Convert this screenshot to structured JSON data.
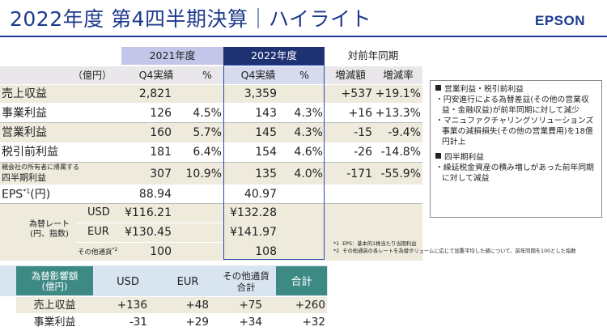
{
  "title": "2022年度 第4四半期決算｜ハイライト",
  "brand": "EPSON",
  "main_table": {
    "unit": "（億円）",
    "period_headers": {
      "prev": "2021年度",
      "curr": "2022年度",
      "yoy": "対前年同期"
    },
    "col_headers": [
      "Q4実績",
      "%",
      "Q4実績",
      "%",
      "増減額",
      "増減率"
    ],
    "rows": [
      {
        "label": "売上収益",
        "v1": "2,821",
        "p1": "",
        "v2": "3,359",
        "p2": "",
        "d": "+537",
        "dr": "+19.1%"
      },
      {
        "label": "事業利益",
        "v1": "126",
        "p1": "4.5%",
        "v2": "143",
        "p2": "4.3%",
        "d": "+16",
        "dr": "+13.3%"
      },
      {
        "label": "営業利益",
        "v1": "160",
        "p1": "5.7%",
        "v2": "145",
        "p2": "4.3%",
        "d": "-15",
        "dr": "-9.4%"
      },
      {
        "label": "税引前利益",
        "v1": "181",
        "p1": "6.4%",
        "v2": "154",
        "p2": "4.6%",
        "d": "-26",
        "dr": "-14.8%"
      },
      {
        "label_small": "親会社の所有者に帰属する",
        "label": "四半期利益",
        "v1": "307",
        "p1": "10.9%",
        "v2": "135",
        "p2": "4.0%",
        "d": "-171",
        "dr": "-55.9%"
      }
    ],
    "eps": {
      "label": "EPS",
      "sup": "*1",
      "unit": "(円)",
      "v1": "88.94",
      "v2": "40.97"
    },
    "fx": {
      "label": "為替レート\n(円、指数)",
      "rows": [
        {
          "ccy": "USD",
          "v1": "¥116.21",
          "v2": "¥132.28"
        },
        {
          "ccy": "EUR",
          "v1": "¥130.45",
          "v2": "¥141.97"
        },
        {
          "ccy": "その他通貨",
          "sup": "*2",
          "v1": "100",
          "v2": "108"
        }
      ]
    }
  },
  "highlights": {
    "sections": [
      {
        "heading": "営業利益・税引前利益",
        "items": [
          "円安進行による為替差益(その他の営業収益・金融収益)が前年同期に対して減少",
          "マニュファクチャリングソリューションズ事業の減損損失(その他の営業費用)を18億円計上"
        ]
      },
      {
        "heading": "四半期利益",
        "items": [
          "繰延税金資産の積み増しがあった前年同期に対して減益"
        ]
      }
    ]
  },
  "notes": [
    {
      "mark": "*1",
      "text": "EPS：基本的1株当たり当期利益"
    },
    {
      "mark": "*2",
      "text": "その他通貨の各レートを為替ボリュームに応じて加重平均した値について、前年同期を100とした指数"
    }
  ],
  "fx_impact": {
    "header": "為替影響額\n(億円)",
    "cols": [
      "USD",
      "EUR",
      "その他通貨\n合計",
      "合計"
    ],
    "rows": [
      {
        "label": "売上収益",
        "values": [
          "+136",
          "+48",
          "+75",
          "+260"
        ]
      },
      {
        "label": "事業利益",
        "values": [
          "-31",
          "+29",
          "+34",
          "+32"
        ]
      }
    ]
  },
  "colors": {
    "navy": "#1e3173",
    "lavender": "#c3c6e8",
    "beige": "#eeeadc",
    "teal": "#3d8a84",
    "light_teal": "#d8e4f0"
  }
}
